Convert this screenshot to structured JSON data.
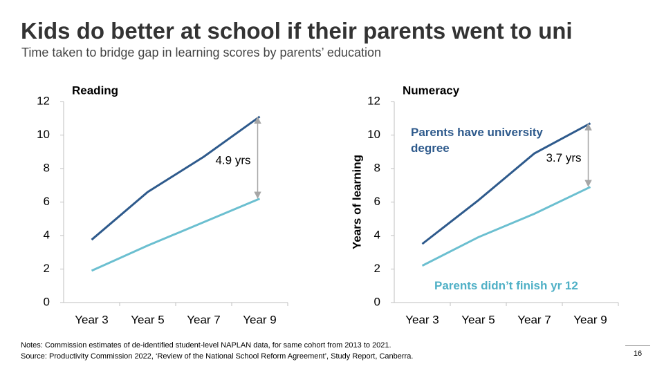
{
  "header": {
    "title": "Kids do better at school if their parents went to uni",
    "subtitle": "Time taken to bridge gap in learning scores by parents’ education"
  },
  "chart_data": [
    {
      "type": "line",
      "title": "Reading",
      "categories": [
        "Year 3",
        "Year 5",
        "Year 7",
        "Year 9"
      ],
      "series": [
        {
          "color": "#2e5a8c",
          "values": [
            3.75,
            6.6,
            8.7,
            11.1
          ]
        },
        {
          "color": "#6bbfd0",
          "values": [
            1.9,
            3.4,
            4.8,
            6.2
          ]
        }
      ],
      "ylim": [
        0,
        12
      ],
      "yticks": [
        0,
        2,
        4,
        6,
        8,
        10,
        12
      ],
      "grid": false,
      "annotation": "4.9 yrs"
    },
    {
      "type": "line",
      "title": "Numeracy",
      "ylabel": "Years of learning",
      "categories": [
        "Year 3",
        "Year 5",
        "Year 7",
        "Year 9"
      ],
      "series": [
        {
          "name": "Parents have university degree",
          "color": "#2e5a8c",
          "values": [
            3.5,
            6.1,
            8.9,
            10.7
          ]
        },
        {
          "name": "Parents didn’t finish yr 12",
          "color": "#6bbfd0",
          "values": [
            2.2,
            3.9,
            5.3,
            6.9
          ]
        }
      ],
      "ylim": [
        0,
        12
      ],
      "yticks": [
        0,
        2,
        4,
        6,
        8,
        10,
        12
      ],
      "grid": false,
      "annotation": "3.7 yrs"
    }
  ],
  "footer": {
    "notes": "Notes: Commission estimates of de-identified student-level NAPLAN data, for same cohort from 2013 to 2021.",
    "source": "Source: Productivity Commission 2022, ‘Review of the National School Reform Agreement’, Study Report, Canberra.",
    "page_number": "16"
  }
}
